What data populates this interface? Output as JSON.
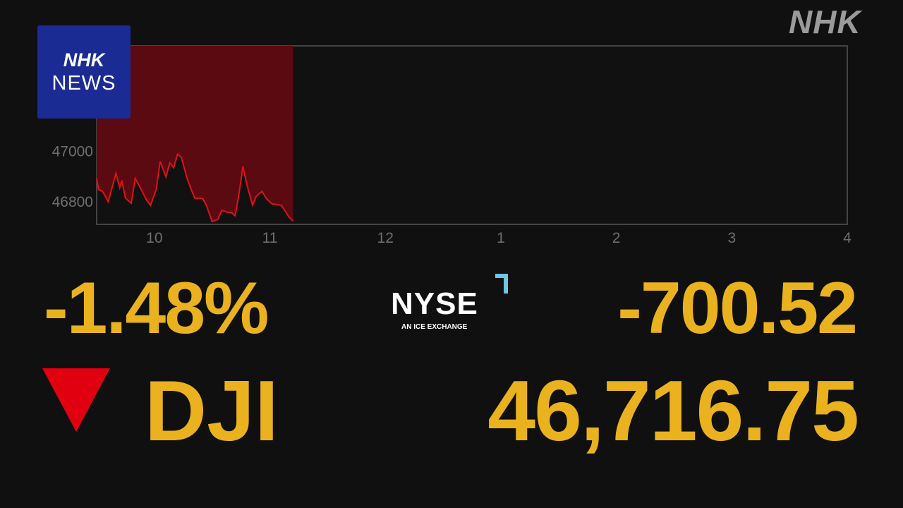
{
  "branding": {
    "corner_logo": "NHK",
    "news_logo_line1": "NHK",
    "news_logo_line2": "NEWS"
  },
  "exchange": {
    "name": "NYSE",
    "tagline": "AN ICE EXCHANGE",
    "accent_color": "#6cc6e4"
  },
  "quote": {
    "symbol": "DJI",
    "direction": "down",
    "percent_change": "-1.48%",
    "point_change": "-700.52",
    "last": "46,716.75",
    "value_color": "#e9b21e",
    "down_color": "#e0000f"
  },
  "chart_data": {
    "type": "area",
    "xlim": [
      "09:30",
      "16:00"
    ],
    "ylim": [
      46710,
      47420
    ],
    "x_ticks": [
      {
        "t": "10:00",
        "label": "10"
      },
      {
        "t": "11:00",
        "label": "11"
      },
      {
        "t": "12:00",
        "label": "12"
      },
      {
        "t": "13:00",
        "label": "1"
      },
      {
        "t": "14:00",
        "label": "2"
      },
      {
        "t": "15:00",
        "label": "3"
      },
      {
        "t": "16:00",
        "label": "4"
      }
    ],
    "y_ticks": [
      {
        "v": 46800,
        "label": "46800"
      },
      {
        "v": 47000,
        "label": "47000"
      }
    ],
    "line_color": "#e0101a",
    "fill_above_color": "#5a0a10",
    "series": [
      {
        "x": [
          "09:30",
          "09:31",
          "09:33",
          "09:36",
          "09:40",
          "09:42",
          "09:43",
          "09:45",
          "09:48",
          "09:50",
          "09:53",
          "09:56",
          "09:58",
          "10:01",
          "10:03",
          "10:06",
          "10:08",
          "10:10",
          "10:12",
          "10:14",
          "10:17",
          "10:19",
          "10:21",
          "10:25",
          "10:27",
          "10:30",
          "10:33",
          "10:35",
          "10:38",
          "10:40",
          "10:42",
          "10:44",
          "10:46",
          "10:48",
          "10:51",
          "10:53",
          "10:56",
          "10:58",
          "11:01",
          "11:06",
          "11:10",
          "11:12"
        ],
        "y": [
          46893,
          46848,
          46842,
          46800,
          46913,
          46856,
          46885,
          46814,
          46794,
          46893,
          46851,
          46806,
          46786,
          46851,
          46961,
          46899,
          46955,
          46935,
          46989,
          46977,
          46893,
          46851,
          46814,
          46814,
          46786,
          46721,
          46730,
          46766,
          46758,
          46758,
          46744,
          46834,
          46941,
          46870,
          46786,
          46823,
          46842,
          46814,
          46792,
          46786,
          46738,
          46724
        ]
      }
    ]
  }
}
